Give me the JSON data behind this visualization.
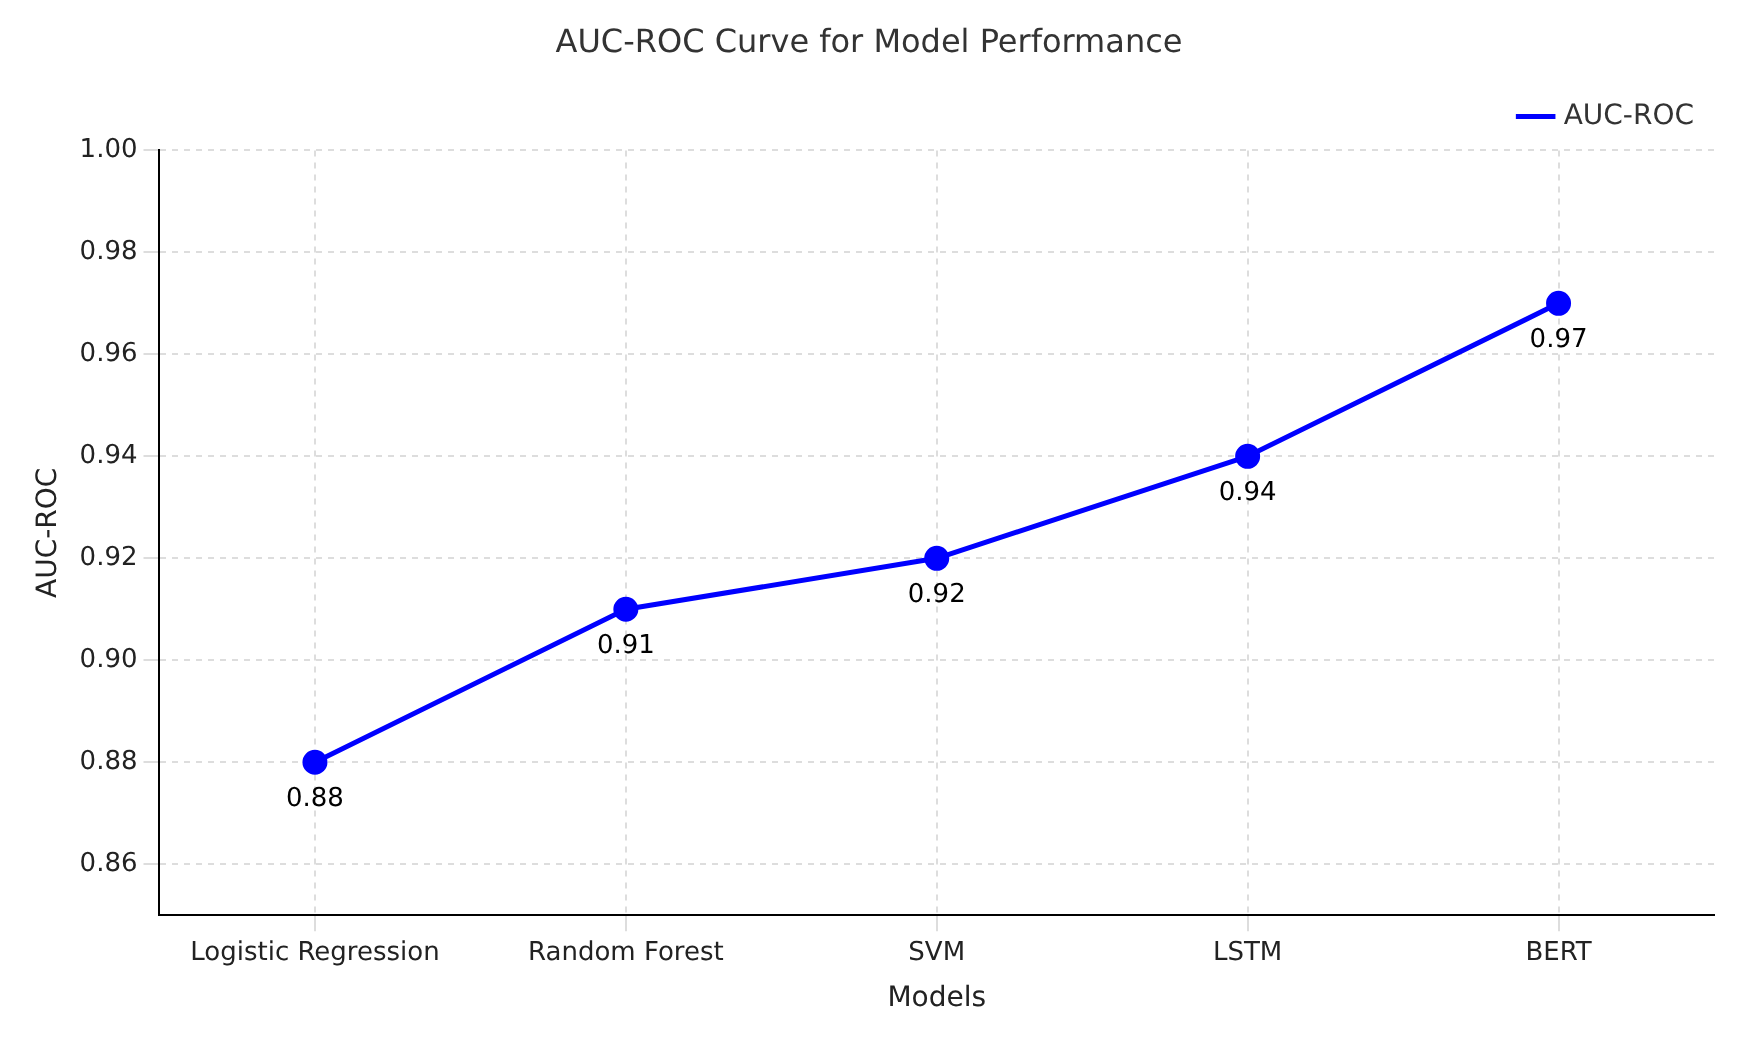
{
  "chart_data": {
    "type": "line",
    "title": "AUC-ROC Curve for Model Performance",
    "xlabel": "Models",
    "ylabel": "AUC-ROC",
    "categories": [
      "Logistic Regression",
      "Random Forest",
      "SVM",
      "LSTM",
      "BERT"
    ],
    "series": [
      {
        "name": "AUC-ROC",
        "color": "#0000ff",
        "values": [
          0.88,
          0.91,
          0.92,
          0.94,
          0.97
        ]
      }
    ],
    "ylim": [
      0.85,
      1.0
    ],
    "yticks": [
      0.86,
      0.88,
      {
        "value": 0.9,
        "label": "0.90"
      },
      0.92,
      0.94,
      0.96,
      0.98,
      {
        "value": 1.0,
        "label": "1.00"
      }
    ],
    "grid": true,
    "legend": "top right",
    "marker": "circle",
    "line_style": "solid",
    "data_labels": true
  }
}
